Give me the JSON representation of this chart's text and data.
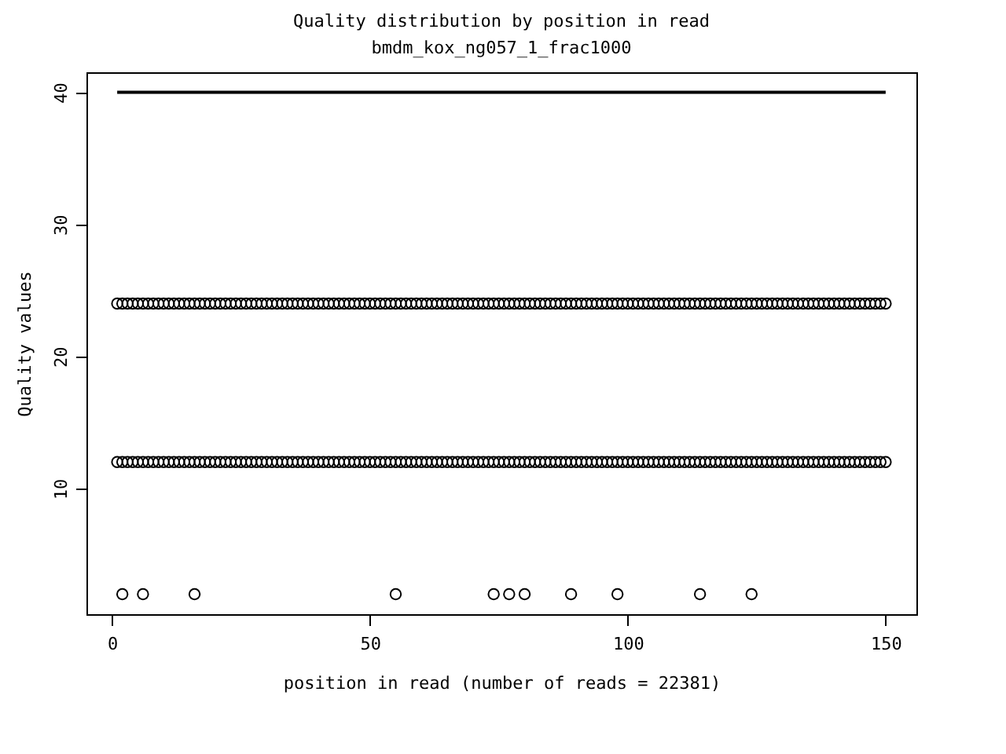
{
  "chart_data": {
    "type": "scatter",
    "title": "Quality distribution by position in read",
    "subtitle": "bmdm_kox_ng057_1_frac1000",
    "xlabel": "position in read (number of reads = 22381)",
    "ylabel": "Quality values",
    "x": [
      1,
      2,
      3,
      4,
      5,
      6,
      7,
      8,
      9,
      10,
      11,
      12,
      13,
      14,
      15,
      16,
      17,
      18,
      19,
      20,
      21,
      22,
      23,
      24,
      25,
      26,
      27,
      28,
      29,
      30,
      31,
      32,
      33,
      34,
      35,
      36,
      37,
      38,
      39,
      40,
      41,
      42,
      43,
      44,
      45,
      46,
      47,
      48,
      49,
      50,
      51,
      52,
      53,
      54,
      55,
      56,
      57,
      58,
      59,
      60,
      61,
      62,
      63,
      64,
      65,
      66,
      67,
      68,
      69,
      70,
      71,
      72,
      73,
      74,
      75,
      76,
      77,
      78,
      79,
      80,
      81,
      82,
      83,
      84,
      85,
      86,
      87,
      88,
      89,
      90,
      91,
      92,
      93,
      94,
      95,
      96,
      97,
      98,
      99,
      100,
      101,
      102,
      103,
      104,
      105,
      106,
      107,
      108,
      109,
      110,
      111,
      112,
      113,
      114,
      115,
      116,
      117,
      118,
      119,
      120,
      121,
      122,
      123,
      124,
      125,
      126,
      127,
      128,
      129,
      130,
      131,
      132,
      133,
      134,
      135,
      136,
      137,
      138,
      139,
      140,
      141,
      142,
      143,
      144,
      145,
      146,
      147,
      148,
      149,
      150
    ],
    "series": [
      {
        "type": "line",
        "marker": "none",
        "color": "#000000",
        "x": [
          1,
          150
        ],
        "values": [
          40,
          40
        ]
      },
      {
        "color": "#000000",
        "values": [
          24,
          24,
          24,
          24,
          24,
          24,
          24,
          24,
          24,
          24,
          24,
          24,
          24,
          24,
          24,
          24,
          24,
          24,
          24,
          24,
          24,
          24,
          24,
          24,
          24,
          24,
          24,
          24,
          24,
          24,
          24,
          24,
          24,
          24,
          24,
          24,
          24,
          24,
          24,
          24,
          24,
          24,
          24,
          24,
          24,
          24,
          24,
          24,
          24,
          24,
          24,
          24,
          24,
          24,
          24,
          24,
          24,
          24,
          24,
          24,
          24,
          24,
          24,
          24,
          24,
          24,
          24,
          24,
          24,
          24,
          24,
          24,
          24,
          24,
          24,
          24,
          24,
          24,
          24,
          24,
          24,
          24,
          24,
          24,
          24,
          24,
          24,
          24,
          24,
          24,
          24,
          24,
          24,
          24,
          24,
          24,
          24,
          24,
          24,
          24,
          24,
          24,
          24,
          24,
          24,
          24,
          24,
          24,
          24,
          24,
          24,
          24,
          24,
          24,
          24,
          24,
          24,
          24,
          24,
          24,
          24,
          24,
          24,
          24,
          24,
          24,
          24,
          24,
          24,
          24,
          24,
          24,
          24,
          24,
          24,
          24,
          24,
          24,
          24,
          24,
          24,
          24,
          24,
          24,
          24,
          24,
          24,
          24,
          24,
          24
        ]
      },
      {
        "color": "#000000",
        "values": [
          12,
          12,
          12,
          12,
          12,
          12,
          12,
          12,
          12,
          12,
          12,
          12,
          12,
          12,
          12,
          12,
          12,
          12,
          12,
          12,
          12,
          12,
          12,
          12,
          12,
          12,
          12,
          12,
          12,
          12,
          12,
          12,
          12,
          12,
          12,
          12,
          12,
          12,
          12,
          12,
          12,
          12,
          12,
          12,
          12,
          12,
          12,
          12,
          12,
          12,
          12,
          12,
          12,
          12,
          12,
          12,
          12,
          12,
          12,
          12,
          12,
          12,
          12,
          12,
          12,
          12,
          12,
          12,
          12,
          12,
          12,
          12,
          12,
          12,
          12,
          12,
          12,
          12,
          12,
          12,
          12,
          12,
          12,
          12,
          12,
          12,
          12,
          12,
          12,
          12,
          12,
          12,
          12,
          12,
          12,
          12,
          12,
          12,
          12,
          12,
          12,
          12,
          12,
          12,
          12,
          12,
          12,
          12,
          12,
          12,
          12,
          12,
          12,
          12,
          12,
          12,
          12,
          12,
          12,
          12,
          12,
          12,
          12,
          12,
          12,
          12,
          12,
          12,
          12,
          12,
          12,
          12,
          12,
          12,
          12,
          12,
          12,
          12,
          12,
          12,
          12,
          12,
          12,
          12,
          12,
          12,
          12,
          12,
          12,
          12
        ]
      },
      {
        "color": "#000000",
        "x": [
          2,
          6,
          16,
          55,
          74,
          77,
          80,
          89,
          98,
          114,
          124
        ],
        "values": [
          2,
          2,
          2,
          2,
          2,
          2,
          2,
          2,
          2,
          2,
          2
        ]
      }
    ],
    "marker": "circle",
    "grid": false,
    "xlim": [
      -4.96,
      155.96
    ],
    "xticks": [
      0,
      50,
      100,
      150
    ],
    "ylim": [
      0.48,
      41.52
    ],
    "yticks": [
      10,
      20,
      30,
      40
    ]
  }
}
